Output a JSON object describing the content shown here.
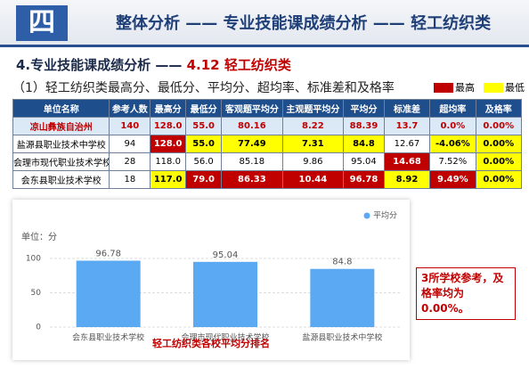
{
  "header": {
    "badge": "四",
    "title": "整体分析 —— 专业技能课成绩分析 —— 轻工纺织类"
  },
  "section": {
    "prefix": "4.专业技能课成绩分析 —— ",
    "highlight": "4.12 轻工纺织类"
  },
  "subtitle": "（1）轻工纺织类最高分、最低分、平均分、超均率、标准差和及格率",
  "legend": {
    "high": "最高",
    "low": "最低"
  },
  "table": {
    "columns": [
      "单位名称",
      "参考人数",
      "最高分",
      "最低分",
      "客观题平均分",
      "主观题平均分",
      "平均分",
      "标准差",
      "超均率",
      "及格率"
    ],
    "rows": [
      [
        "凉山彝族自治州",
        "140",
        "128.0",
        "55.0",
        "80.16",
        "8.22",
        "88.39",
        "13.7",
        "0.0%",
        "0.00%"
      ],
      [
        "盐源县职业技术中学校",
        "94",
        "128.0",
        "55.0",
        "77.49",
        "7.31",
        "84.8",
        "12.67",
        "-4.06%",
        "0.00%"
      ],
      [
        "会理市现代职业技术学校",
        "28",
        "118.0",
        "56.0",
        "85.18",
        "9.86",
        "95.04",
        "14.68",
        "7.52%",
        "0.00%"
      ],
      [
        "会东县职业技术学校",
        "18",
        "117.0",
        "79.0",
        "86.33",
        "10.44",
        "96.78",
        "8.92",
        "9.49%",
        "0.00%"
      ]
    ]
  },
  "chart_data": {
    "type": "bar",
    "y_label": "单位：分",
    "title": "轻工纺织类各校平均分排名",
    "categories": [
      "会东县职业技术学校",
      "会理市现代职业技术学校",
      "盐源县职业技术中学校"
    ],
    "series": [
      {
        "name": "平均分",
        "color": "#5aa9f2",
        "values": [
          96.78,
          95.04,
          84.8
        ]
      }
    ],
    "ylim": [
      0,
      100
    ],
    "yticks": [
      0,
      50,
      100
    ],
    "grid": true
  },
  "callout": "3所学校参考，及格率均为0.00%。"
}
